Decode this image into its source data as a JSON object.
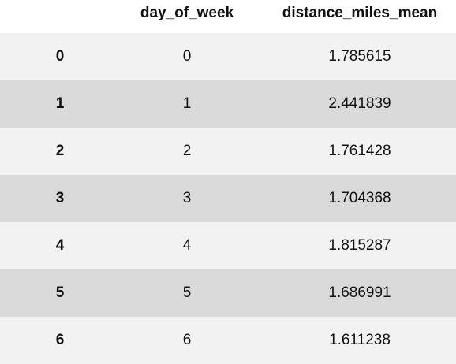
{
  "table": {
    "columns": {
      "index": "",
      "day_of_week": "day_of_week",
      "distance_miles_mean": "distance_miles_mean"
    },
    "rows": [
      {
        "index": "0",
        "day_of_week": "0",
        "distance_miles_mean": "1.785615"
      },
      {
        "index": "1",
        "day_of_week": "1",
        "distance_miles_mean": "2.441839"
      },
      {
        "index": "2",
        "day_of_week": "2",
        "distance_miles_mean": "1.761428"
      },
      {
        "index": "3",
        "day_of_week": "3",
        "distance_miles_mean": "1.704368"
      },
      {
        "index": "4",
        "day_of_week": "4",
        "distance_miles_mean": "1.815287"
      },
      {
        "index": "5",
        "day_of_week": "5",
        "distance_miles_mean": "1.686991"
      },
      {
        "index": "6",
        "day_of_week": "6",
        "distance_miles_mean": "1.611238"
      }
    ]
  }
}
